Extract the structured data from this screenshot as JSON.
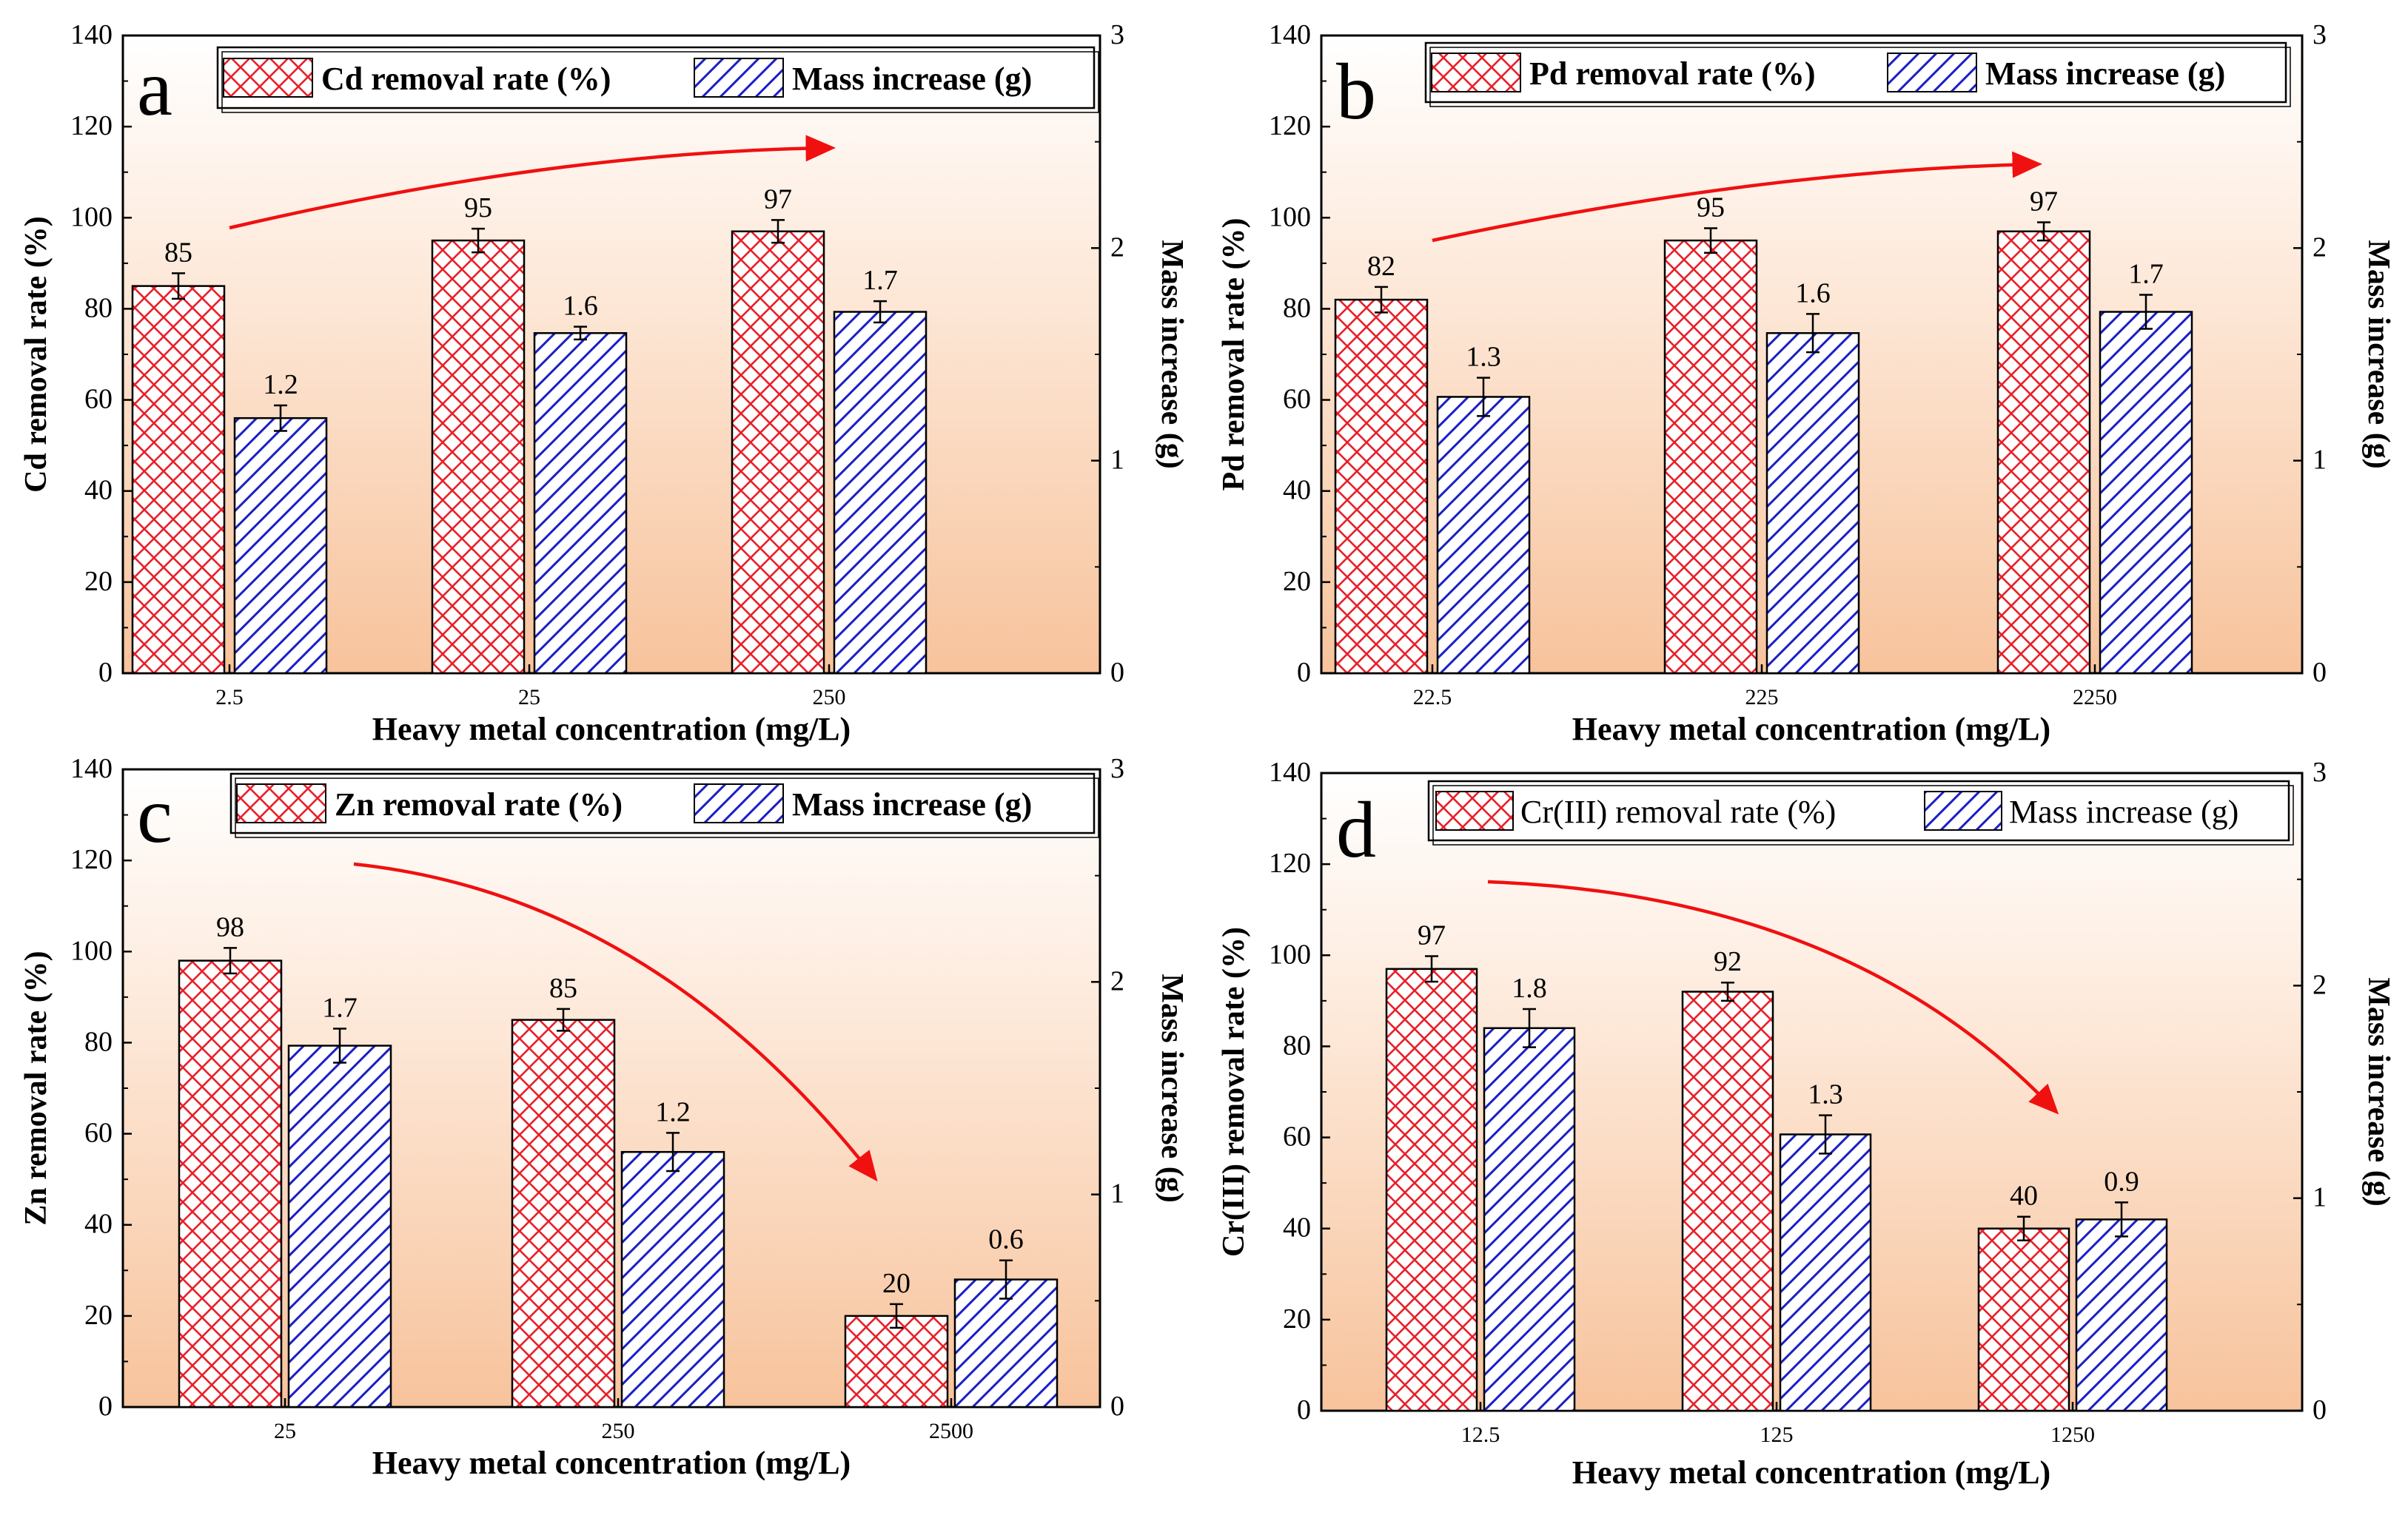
{
  "chart_data": [
    {
      "type": "bar",
      "panel": "a",
      "categories": [
        "2.5",
        "25",
        "250"
      ],
      "series": [
        {
          "name": "Cd removal rate (%)",
          "axis": "left",
          "values": [
            85,
            95,
            97
          ],
          "labels": [
            "85",
            "95",
            "97"
          ],
          "errors": [
            2.8,
            2.6,
            2.5
          ]
        },
        {
          "name": "Mass increase (g)",
          "axis": "right",
          "values": [
            1.2,
            1.6,
            1.7
          ],
          "labels": [
            "1.2",
            "1.6",
            "1.7"
          ],
          "errors": [
            0.06,
            0.03,
            0.05
          ]
        }
      ],
      "xlabel": "Heavy metal concentration (mg/L)",
      "ylabel": "Cd removal rate (%)",
      "y2label": "Mass increase (g)",
      "ylim": [
        0,
        140
      ],
      "y2lim": [
        0,
        3
      ],
      "yticks": [
        "0",
        "20",
        "40",
        "60",
        "80",
        "100",
        "120",
        "140"
      ],
      "y2ticks": [
        "0",
        "1",
        "2",
        "3"
      ],
      "trend": "increasing",
      "legend_position": "top-right"
    },
    {
      "type": "bar",
      "panel": "b",
      "categories": [
        "22.5",
        "225",
        "2250"
      ],
      "series": [
        {
          "name": "Pd removal rate (%)",
          "axis": "left",
          "values": [
            82,
            95,
            97
          ],
          "labels": [
            "82",
            "95",
            "97"
          ],
          "errors": [
            2.8,
            2.7,
            2.0
          ]
        },
        {
          "name": "Mass increase (g)",
          "axis": "right",
          "values": [
            1.3,
            1.6,
            1.7
          ],
          "labels": [
            "1.3",
            "1.6",
            "1.7"
          ],
          "errors": [
            0.09,
            0.09,
            0.08
          ]
        }
      ],
      "xlabel": "Heavy metal concentration (mg/L)",
      "ylabel": "Pd removal rate (%)",
      "y2label": "Mass increase (g)",
      "ylim": [
        0,
        140
      ],
      "y2lim": [
        0,
        3
      ],
      "yticks": [
        "0",
        "20",
        "40",
        "60",
        "80",
        "100",
        "120",
        "140"
      ],
      "y2ticks": [
        "0",
        "1",
        "2",
        "3"
      ],
      "trend": "increasing",
      "legend_position": "top-right"
    },
    {
      "type": "bar",
      "panel": "c",
      "categories": [
        "25",
        "250",
        "2500"
      ],
      "series": [
        {
          "name": "Zn removal rate (%)",
          "axis": "left",
          "values": [
            98,
            85,
            20
          ],
          "labels": [
            "98",
            "85",
            "20"
          ],
          "errors": [
            2.8,
            2.4,
            2.6
          ]
        },
        {
          "name": "Mass increase (g)",
          "axis": "right",
          "values": [
            1.7,
            1.2,
            0.6
          ],
          "labels": [
            "1.7",
            "1.2",
            "0.6"
          ],
          "errors": [
            0.08,
            0.09,
            0.09
          ]
        }
      ],
      "xlabel": "Heavy metal concentration (mg/L)",
      "ylabel": "Zn removal rate (%)",
      "y2label": "Mass increase (g)",
      "ylim": [
        0,
        140
      ],
      "y2lim": [
        0,
        3
      ],
      "yticks": [
        "0",
        "20",
        "40",
        "60",
        "80",
        "100",
        "120",
        "140"
      ],
      "y2ticks": [
        "0",
        "1",
        "2",
        "3"
      ],
      "trend": "decreasing",
      "legend_position": "top-right"
    },
    {
      "type": "bar",
      "panel": "d",
      "categories": [
        "12.5",
        "125",
        "1250"
      ],
      "series": [
        {
          "name": "Cr(III) removal rate (%)",
          "axis": "left",
          "values": [
            97,
            92,
            40
          ],
          "labels": [
            "97",
            "92",
            "40"
          ],
          "errors": [
            2.8,
            2.0,
            2.6
          ]
        },
        {
          "name": "Mass increase (g)",
          "axis": "right",
          "values": [
            1.8,
            1.3,
            0.9
          ],
          "labels": [
            "1.8",
            "1.3",
            "0.9"
          ],
          "errors": [
            0.09,
            0.09,
            0.08
          ]
        }
      ],
      "xlabel": "Heavy metal concentration (mg/L)",
      "ylabel": "Cr(III) removal rate (%)",
      "y2label": "Mass increase (g)",
      "ylim": [
        0,
        140
      ],
      "y2lim": [
        0,
        3
      ],
      "yticks": [
        "0",
        "20",
        "40",
        "60",
        "80",
        "100",
        "120",
        "140"
      ],
      "y2ticks": [
        "0",
        "1",
        "2",
        "3"
      ],
      "trend": "decreasing",
      "legend_position": "top-right"
    }
  ],
  "colors": {
    "removal_bar": "#e8202a",
    "mass_bar": "#1b1fc4",
    "arrow": "#f01010",
    "background_top": "#ffffff",
    "background_bottom": "#f8c8a4"
  }
}
